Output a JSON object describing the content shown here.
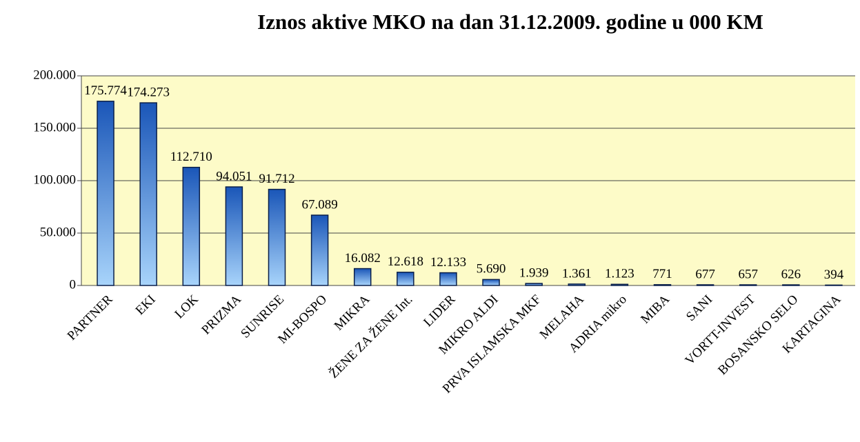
{
  "chart_data": {
    "type": "bar",
    "title": "Iznos aktive MKO na dan 31.12.2009. godine u 000 KM",
    "categories": [
      "PARTNER",
      "EKI",
      "LOK",
      "PRIZMA",
      "SUNRISE",
      "MI-BOSPO",
      "MIKRA",
      "ŽENE ZA ŽENE Int.",
      "LIDER",
      "MIKRO ALDI",
      "PRVA ISLAMSKA MKF",
      "MELAHA",
      "ADRIA mikro",
      "MIBA",
      "SANI",
      "VORTT-INVEST",
      "BOSANSKO SELO",
      "KARTAGINA"
    ],
    "values": [
      175774,
      174273,
      112710,
      94051,
      91712,
      67089,
      16082,
      12618,
      12133,
      5690,
      1939,
      1361,
      1123,
      771,
      677,
      657,
      626,
      394
    ],
    "value_labels": [
      "175.774",
      "174.273",
      "112.710",
      "94.051",
      "91.712",
      "67.089",
      "16.082",
      "12.618",
      "12.133",
      "5.690",
      "1.939",
      "1.361",
      "1.123",
      "771",
      "677",
      "657",
      "626",
      "394"
    ],
    "color": "#1f5fc0",
    "ylim": [
      0,
      200000
    ],
    "yticks": [
      0,
      {
        "value": 50000,
        "label": "50.000"
      },
      {
        "value": 100000,
        "label": "100.000"
      },
      {
        "value": 150000,
        "label": "150.000"
      },
      {
        "value": 200000,
        "label": "200.000"
      }
    ],
    "grid": true
  }
}
